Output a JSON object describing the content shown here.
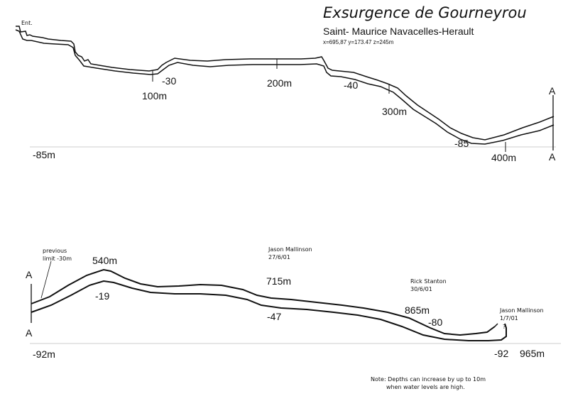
{
  "header": {
    "title": "Exsurgence de Gourneyrou",
    "subtitle": "Saint- Maurice Navacelles-Herault",
    "coordinates": "x=695,87 y=173.47 z=245m"
  },
  "upper_section": {
    "entrance": "Ent.",
    "distances": [
      "100m",
      "200m",
      "300m",
      "400m"
    ],
    "depths": [
      "-30",
      "-40",
      "-85"
    ],
    "datum": "-85m",
    "connector_top": "A",
    "connector_bottom": "A"
  },
  "lower_section": {
    "connector_top": "A",
    "connector_bottom": "A",
    "datum": "-92m",
    "previous_limit": [
      "previous",
      "limit -30m"
    ],
    "distances": [
      "540m",
      "715m",
      "865m",
      "965m"
    ],
    "depths": [
      "-19",
      "-47",
      "-80",
      "-92"
    ],
    "explorers": [
      {
        "name": "Jason Mallinson",
        "date": "27/6/01"
      },
      {
        "name": "Rick Stanton",
        "date": "30/6/01"
      },
      {
        "name": "Jason Mallinson",
        "date": "1/7/01"
      }
    ],
    "unknown_mark": "?"
  },
  "note": {
    "line1": "Note: Depths can increase by up to 10m",
    "line2": "when  water levels are high."
  },
  "colors": {
    "ink": "#111111",
    "background": "#ffffff",
    "datum_line": "#bbbbbb"
  }
}
